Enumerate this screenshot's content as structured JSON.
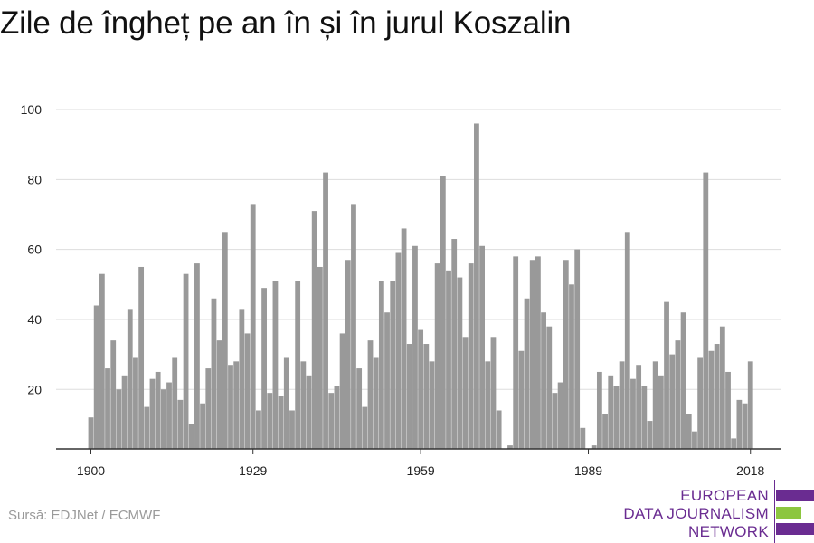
{
  "chart_data": {
    "type": "bar",
    "title": "Zile de îngheț pe an în și în jurul Koszalin",
    "x": [
      1900,
      1901,
      1902,
      1903,
      1904,
      1905,
      1906,
      1907,
      1908,
      1909,
      1910,
      1911,
      1912,
      1913,
      1914,
      1915,
      1916,
      1917,
      1918,
      1919,
      1920,
      1921,
      1922,
      1923,
      1924,
      1925,
      1926,
      1927,
      1928,
      1929,
      1930,
      1931,
      1932,
      1933,
      1934,
      1935,
      1936,
      1937,
      1938,
      1939,
      1940,
      1941,
      1942,
      1943,
      1944,
      1945,
      1946,
      1947,
      1948,
      1949,
      1950,
      1951,
      1952,
      1953,
      1954,
      1955,
      1956,
      1957,
      1958,
      1959,
      1960,
      1961,
      1962,
      1963,
      1964,
      1965,
      1966,
      1967,
      1968,
      1969,
      1970,
      1971,
      1972,
      1973,
      1974,
      1975,
      1976,
      1977,
      1978,
      1979,
      1980,
      1981,
      1982,
      1983,
      1984,
      1985,
      1986,
      1987,
      1988,
      1989,
      1990,
      1991,
      1992,
      1993,
      1994,
      1995,
      1996,
      1997,
      1998,
      1999,
      2000,
      2001,
      2002,
      2003,
      2004,
      2005,
      2006,
      2007,
      2008,
      2009,
      2010,
      2011,
      2012,
      2013,
      2014,
      2015,
      2016,
      2017,
      2018
    ],
    "values": [
      12,
      44,
      53,
      26,
      34,
      20,
      24,
      43,
      29,
      55,
      15,
      23,
      25,
      20,
      22,
      29,
      17,
      53,
      10,
      56,
      16,
      26,
      46,
      34,
      65,
      27,
      28,
      43,
      36,
      73,
      14,
      49,
      19,
      51,
      18,
      29,
      14,
      51,
      28,
      24,
      71,
      55,
      82,
      19,
      21,
      36,
      57,
      73,
      26,
      15,
      34,
      29,
      51,
      42,
      51,
      59,
      66,
      33,
      61,
      37,
      33,
      28,
      56,
      81,
      54,
      63,
      52,
      35,
      56,
      96,
      61,
      28,
      35,
      14,
      3,
      4,
      58,
      31,
      46,
      57,
      58,
      42,
      38,
      19,
      22,
      57,
      50,
      60,
      9,
      3,
      4,
      25,
      13,
      24,
      21,
      28,
      65,
      23,
      27,
      21,
      11,
      28,
      24,
      45,
      30,
      34,
      42,
      13,
      8,
      29,
      82,
      31,
      33,
      38,
      25,
      6,
      17,
      16,
      28
    ],
    "yticks": [
      20,
      40,
      60,
      80,
      100
    ],
    "xticks": [
      1900,
      1929,
      1959,
      1989,
      2018
    ],
    "ylim": [
      3,
      100
    ],
    "grid": true,
    "bar_color": "#999999"
  },
  "footer": {
    "source": "Sursă: EDJNet / ECMWF"
  },
  "logo": {
    "lines": [
      "EUROPEAN",
      "DATA JOURNALISM",
      "NETWORK"
    ]
  },
  "colors": {
    "purple": "#6a2c91",
    "green": "#8cc63f",
    "grid": "#dddddd",
    "axis": "#333333"
  }
}
